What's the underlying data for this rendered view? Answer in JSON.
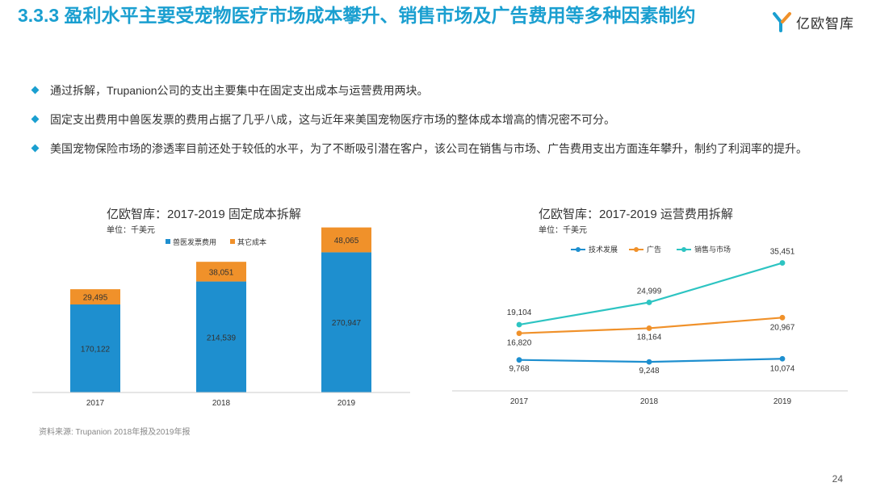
{
  "header": {
    "title": "3.3.3 盈利水平主要受宠物医疗市场成本攀升、销售市场及广告费用等多种因素制约",
    "logo_text": "亿欧智库"
  },
  "bullets": [
    "通过拆解，Trupanion公司的支出主要集中在固定支出成本与运营费用两块。",
    "固定支出费用中兽医发票的费用占据了几乎八成，这与近年来美国宠物医疗市场的整体成本增高的情况密不可分。",
    "美国宠物保险市场的渗透率目前还处于较低的水平，为了不断吸引潜在客户，该公司在销售与市场、广告费用支出方面连年攀升，制约了利润率的提升。"
  ],
  "source": "资料来源: Trupanion 2018年报及2019年报",
  "page_number": "24",
  "colors": {
    "blue": "#1e8fcf",
    "orange": "#f0912a",
    "teal": "#2dc4c2",
    "title": "#1a9fd0"
  },
  "chart_data": [
    {
      "type": "bar",
      "stacked": true,
      "title": "亿欧智库：2017-2019 固定成本拆解",
      "unit": "单位：千美元",
      "categories": [
        "2017",
        "2018",
        "2019"
      ],
      "series": [
        {
          "name": "兽医发票费用",
          "color": "#1e8fcf",
          "values": [
            170122,
            214539,
            270947
          ],
          "labels": [
            "170,122",
            "214,539",
            "270,947"
          ]
        },
        {
          "name": "其它成本",
          "color": "#f0912a",
          "values": [
            29495,
            38051,
            48065
          ],
          "labels": [
            "29,495",
            "38,051",
            "48,065"
          ]
        }
      ],
      "ylim": [
        0,
        320000
      ],
      "legend": "top"
    },
    {
      "type": "line",
      "title": "亿欧智库：2017-2019 运营费用拆解",
      "unit": "单位：千美元",
      "categories": [
        "2017",
        "2018",
        "2019"
      ],
      "series": [
        {
          "name": "技术发展",
          "color": "#1e8fcf",
          "values": [
            9768,
            9248,
            10074
          ],
          "labels": [
            "9,768",
            "9,248",
            "10,074"
          ]
        },
        {
          "name": "广告",
          "color": "#f0912a",
          "values": [
            16820,
            18164,
            20967
          ],
          "labels": [
            "16,820",
            "18,164",
            "20,967"
          ]
        },
        {
          "name": "销售与市场",
          "color": "#2dc4c2",
          "values": [
            19104,
            24999,
            35451
          ],
          "labels": [
            "19,104",
            "24,999",
            "35,451"
          ]
        }
      ],
      "ylim": [
        0,
        38000
      ],
      "legend": "top"
    }
  ]
}
